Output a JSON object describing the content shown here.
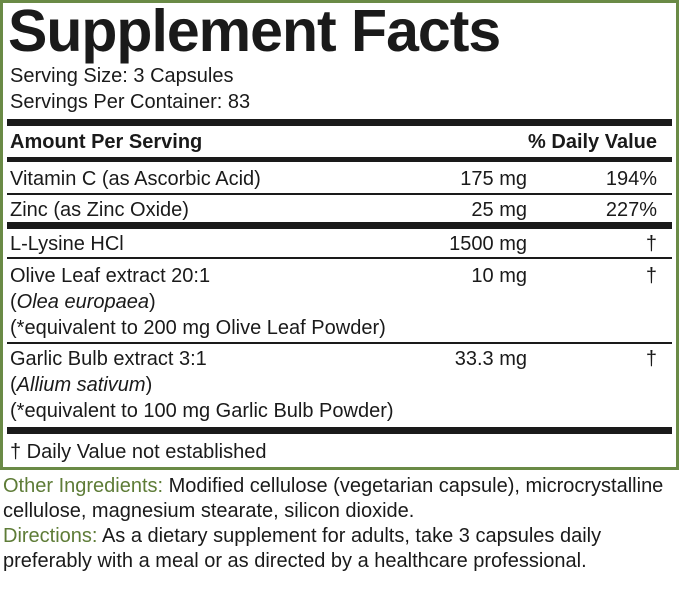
{
  "title": "Supplement Facts",
  "serving_size": "Serving Size: 3 Capsules",
  "servings_per_container": "Servings Per Container: 83",
  "header": {
    "amount": "Amount Per Serving",
    "daily_value": "% Daily Value"
  },
  "rows": [
    {
      "name": "Vitamin C (as Ascorbic Acid)",
      "amount": "175 mg",
      "dv": "194%"
    },
    {
      "name": "Zinc (as Zinc Oxide)",
      "amount": "25 mg",
      "dv": "227%"
    },
    {
      "name": "L-Lysine HCl",
      "amount": "1500 mg",
      "dv": "†"
    },
    {
      "name": "Olive Leaf extract 20:1",
      "latin": "Olea europaea",
      "note": "(*equivalent to 200 mg Olive Leaf Powder)",
      "amount": "10 mg",
      "dv": "†"
    },
    {
      "name": "Garlic Bulb extract 3:1",
      "latin": "Allium sativum",
      "note": "(*equivalent to 100 mg Garlic Bulb Powder)",
      "amount": "33.3 mg",
      "dv": "†"
    }
  ],
  "footnote": "† Daily Value not established",
  "other_ingredients": {
    "label": "Other Ingredients:",
    "text": " Modified cellulose (vegetarian capsule), microcrystalline cellulose, magnesium stearate, silicon dioxide."
  },
  "directions": {
    "label": "Directions:",
    "text": " As a dietary supplement for adults, take 3 capsules daily preferably with a meal or as directed by a healthcare professional."
  },
  "colors": {
    "border": "#6a8a46",
    "label_green": "#5e7c37",
    "text": "#1a1a1a"
  }
}
